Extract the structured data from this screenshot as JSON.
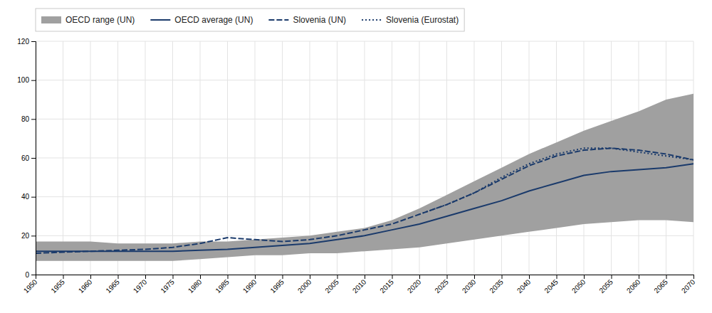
{
  "chart_data": {
    "type": "line",
    "x": [
      1950,
      1955,
      1960,
      1965,
      1970,
      1975,
      1980,
      1985,
      1990,
      1995,
      2000,
      2005,
      2010,
      2015,
      2020,
      2025,
      2030,
      2035,
      2040,
      2045,
      2050,
      2055,
      2060,
      2065,
      2070
    ],
    "xlim": [
      1950,
      2070
    ],
    "xticks": [
      1950,
      1955,
      1960,
      1965,
      1970,
      1975,
      1980,
      1985,
      1990,
      1995,
      2000,
      2005,
      2010,
      2015,
      2020,
      2025,
      2030,
      2035,
      2040,
      2045,
      2050,
      2055,
      2060,
      2065,
      2070
    ],
    "ylim": [
      0,
      120
    ],
    "yticks": [
      0,
      20,
      40,
      60,
      80,
      100,
      120
    ],
    "grid": true,
    "legend": "upper left",
    "series": [
      {
        "name": "OECD range (UN)",
        "type": "area",
        "color": "#a0a0a0",
        "lower": [
          7,
          7,
          7,
          7,
          7,
          7,
          8,
          9,
          10,
          10,
          11,
          11,
          12,
          13,
          14,
          16,
          18,
          20,
          22,
          24,
          26,
          27,
          28,
          28,
          27
        ],
        "upper": [
          17,
          17,
          17,
          16,
          16,
          16,
          17,
          17,
          18,
          19,
          20,
          22,
          24,
          28,
          34,
          41,
          48,
          55,
          62,
          68,
          74,
          79,
          84,
          90,
          93
        ]
      },
      {
        "name": "OECD average (UN)",
        "type": "line",
        "color": "#1a3a6b",
        "line_style": "solid",
        "values": [
          12,
          12,
          12,
          12,
          12,
          12,
          12.5,
          13,
          14,
          15,
          16,
          18,
          20,
          23,
          26,
          30,
          34,
          38,
          43,
          47,
          51,
          53,
          54,
          55,
          57
        ]
      },
      {
        "name": "Slovenia (UN)",
        "type": "line",
        "color": "#1a3a6b",
        "line_style": "dashed",
        "values": [
          11,
          11.5,
          12,
          12.5,
          13,
          14,
          16,
          19,
          18,
          17,
          18,
          20,
          23,
          26,
          31,
          36,
          42,
          49,
          56,
          61,
          64,
          65,
          64,
          62,
          59
        ]
      },
      {
        "name": "Slovenia (Eurostat)",
        "type": "line",
        "color": "#1a3a6b",
        "line_style": "dotted",
        "values": [
          null,
          null,
          null,
          null,
          null,
          null,
          null,
          null,
          null,
          null,
          null,
          null,
          null,
          null,
          31,
          36,
          42,
          50,
          57,
          62,
          65,
          65,
          63,
          61,
          59
        ]
      }
    ]
  }
}
